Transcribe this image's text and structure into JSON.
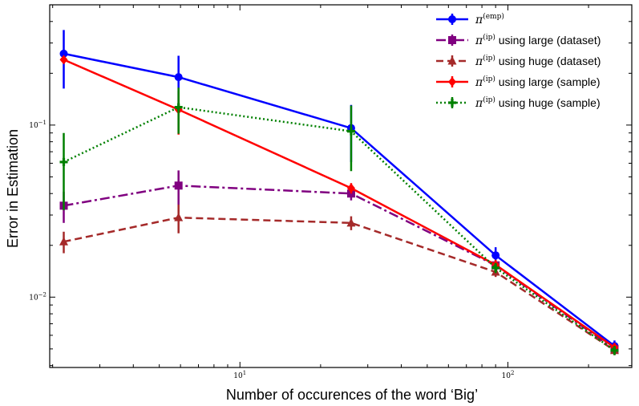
{
  "chart_data": {
    "type": "line",
    "title": "",
    "xlabel": "Number of occurences of the word ‘Big’",
    "ylabel": "Error in Estimation",
    "xscale": "log",
    "yscale": "log",
    "xlim": [
      1.95,
      290
    ],
    "ylim": [
      0.0039,
      0.5
    ],
    "x_major_ticks": [
      {
        "base": "10",
        "exp": "1",
        "value": 10
      },
      {
        "base": "10",
        "exp": "2",
        "value": 100
      }
    ],
    "y_major_ticks": [
      {
        "base": "10",
        "exp": "−1",
        "value": 0.1
      },
      {
        "base": "10",
        "exp": "−2",
        "value": 0.01
      }
    ],
    "grid": false,
    "legend_position": "top-right",
    "x": [
      2.2,
      5.9,
      26,
      90,
      250
    ],
    "series": [
      {
        "name_symbol": "π",
        "name_sup": "(emp)",
        "name_text": "",
        "color": "#0000ff",
        "dash": "solid",
        "marker": "circle",
        "values": [
          0.26,
          0.19,
          0.096,
          0.0175,
          0.0052
        ],
        "err": [
          0.097,
          0.063,
          0.035,
          0.002,
          0.0004
        ]
      },
      {
        "name_symbol": "π",
        "name_sup": "(ip)",
        "name_text": " using large (dataset)",
        "color": "#800080",
        "dash": "dashdot",
        "marker": "square",
        "values": [
          0.034,
          0.0445,
          0.04,
          0.0153,
          0.005
        ],
        "err": [
          0.007,
          0.01,
          0.0035,
          0.0012,
          0.0003
        ]
      },
      {
        "name_symbol": "π",
        "name_sup": "(ip)",
        "name_text": " using huge (dataset)",
        "color": "#a52a2a",
        "dash": "dashed",
        "marker": "triangle",
        "values": [
          0.021,
          0.029,
          0.027,
          0.014,
          0.0049
        ],
        "err": [
          0.003,
          0.0055,
          0.0025,
          0.0009,
          0.0003
        ]
      },
      {
        "name_symbol": "π",
        "name_sup": "(ip)",
        "name_text": " using large (sample)",
        "color": "#ff0000",
        "dash": "solid",
        "marker": "diamond",
        "values": [
          0.24,
          0.123,
          0.043,
          0.0154,
          0.0051
        ],
        "err": [
          0.01,
          0.035,
          0.003,
          0.001,
          0.0003
        ]
      },
      {
        "name_symbol": "π",
        "name_sup": "(ip)",
        "name_text": " using huge (sample)",
        "color": "#008000",
        "dash": "dotted",
        "marker": "plus",
        "values": [
          0.061,
          0.127,
          0.092,
          0.0148,
          0.0049
        ],
        "err": [
          0.029,
          0.038,
          0.038,
          0.001,
          0.0003
        ]
      }
    ]
  }
}
